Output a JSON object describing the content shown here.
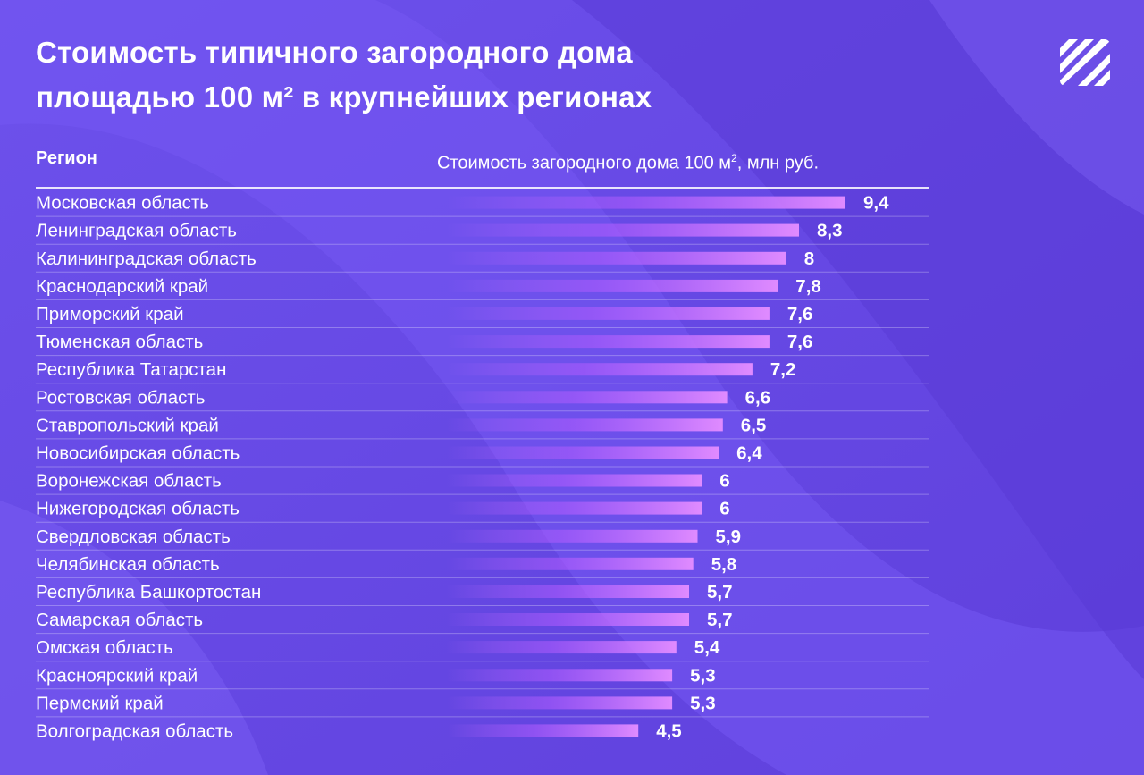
{
  "title_line1": "Стоимость типичного загородного дома",
  "title_line2": "площадью 100 м² в крупнейших регионах",
  "logo_icon": "striped-square-logo-icon",
  "colors": {
    "background": "#6a4de8",
    "bar_end": "#d77dff",
    "text": "#ffffff"
  },
  "chart_data": {
    "type": "bar",
    "orientation": "horizontal",
    "title": "Стоимость типичного загородного дома площадью 100 м² в крупнейших регионах",
    "col_region": "Регион",
    "col_value_main": "Стоимость загородного дома 100 м",
    "col_value_sup": "2",
    "col_value_tail": ", млн руб.",
    "categories": [
      "Московская область",
      "Ленинградская область",
      "Калининградская область",
      "Краснодарский край",
      "Приморский край",
      "Тюменская область",
      "Республика Татарстан",
      "Ростовская область",
      "Ставропольский край",
      "Новосибирская область",
      "Воронежская область",
      "Нижегородская область",
      "Свердловская область",
      "Челябинская область",
      "Республика Башкортостан",
      "Самарская область",
      "Омская область",
      "Красноярский край",
      "Пермский край",
      "Волгоградская область"
    ],
    "values": [
      9.4,
      8.3,
      8,
      7.8,
      7.6,
      7.6,
      7.2,
      6.6,
      6.5,
      6.4,
      6,
      6,
      5.9,
      5.8,
      5.7,
      5.7,
      5.4,
      5.3,
      5.3,
      4.5
    ],
    "value_labels": [
      "9,4",
      "8,3",
      "8",
      "7,8",
      "7,6",
      "7,6",
      "7,2",
      "6,6",
      "6,5",
      "6,4",
      "6",
      "6",
      "5,9",
      "5,8",
      "5,7",
      "5,7",
      "5,4",
      "5,3",
      "5,3",
      "4,5"
    ],
    "unit": "млн руб."
  }
}
